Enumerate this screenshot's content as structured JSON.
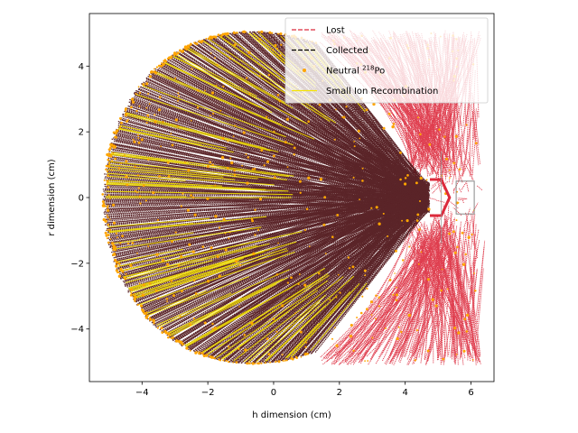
{
  "chart_data": {
    "type": "scatter",
    "title": "",
    "xlabel": "h dimension (cm)",
    "ylabel": "r dimension (cm)",
    "xlim": [
      -5.6,
      6.7
    ],
    "ylim": [
      -5.6,
      5.6
    ],
    "xticks": [
      -4,
      -2,
      0,
      2,
      4,
      6
    ],
    "yticks": [
      -4,
      -2,
      0,
      2,
      4
    ],
    "xtick_labels": [
      "−4",
      "−2",
      "0",
      "2",
      "4",
      "6"
    ],
    "ytick_labels": [
      "−4",
      "−2",
      "0",
      "2",
      "4"
    ],
    "grid": false,
    "legend_placement": "upper right",
    "legend": [
      {
        "label": "Lost",
        "sup": "",
        "suffix": "",
        "marker": "dashed-line",
        "color": "#dc2a3c"
      },
      {
        "label": "Collected",
        "sup": "",
        "suffix": "",
        "marker": "dashed-line",
        "color": "#000000"
      },
      {
        "label": "Neutral ",
        "sup": "218",
        "suffix": "Po",
        "marker": "dot",
        "color": "#ffa500"
      },
      {
        "label": "Small Ion Recombination",
        "sup": "",
        "suffix": "",
        "marker": "solid-line",
        "color": "#f5e400"
      }
    ],
    "series": [
      {
        "name": "Lost",
        "color": "#dc2a3c",
        "region": "trajectories with h from about 1.5 to 6.2 cm, fanning out to r = ±5 cm"
      },
      {
        "name": "Collected",
        "color": "#4a0e12",
        "region": "trajectories converging to the detector near h ≈ 4.7 cm, r ≈ 0, outer envelope reaching h ≈ -5.2 cm"
      },
      {
        "name": "Neutral 218Po",
        "color": "#ffa500",
        "region": "scattered dots along the trajectories"
      },
      {
        "name": "Small Ion Recombination",
        "color": "#f5e400",
        "region": "short segments along the trajectories"
      }
    ],
    "detector_outline": {
      "h": [
        4.75,
        5.1,
        5.35,
        5.1,
        4.75
      ],
      "r": [
        -0.55,
        -0.55,
        0,
        0.55,
        0.55
      ]
    },
    "housing_rect": {
      "h": [
        5.55,
        6.1
      ],
      "r": [
        -0.5,
        0.5
      ]
    },
    "chamber_boundary_h": 6.1,
    "chamber_radius": 5.0
  }
}
